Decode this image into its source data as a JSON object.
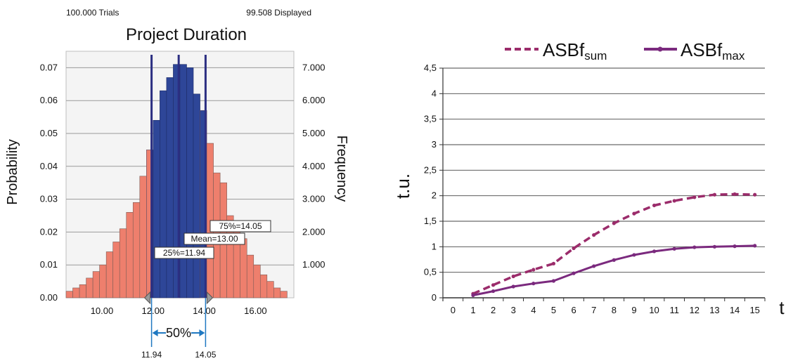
{
  "chart_data": [
    {
      "type": "bar",
      "title": "Project Duration",
      "header_left": "100.000 Trials",
      "header_right": "99.508 Displayed",
      "xlabel": "",
      "ylabel_left": "Probability",
      "ylabel_right": "Frequency",
      "xlim": [
        8.6,
        17.5
      ],
      "ylim_left": [
        0,
        0.075
      ],
      "ylim_right": [
        0,
        7500
      ],
      "x_ticks": [
        10.0,
        12.0,
        14.0,
        16.0
      ],
      "x_tick_labels": [
        "10.00",
        "12.00",
        "14.00",
        "16.00"
      ],
      "y_left_ticks": [
        0,
        0.01,
        0.02,
        0.03,
        0.04,
        0.05,
        0.06,
        0.07
      ],
      "y_left_tick_labels": [
        "0.00",
        "0.01",
        "0.02",
        "0.03",
        "0.04",
        "0.05",
        "0.06",
        "0.07"
      ],
      "y_right_ticks": [
        1000,
        2000,
        3000,
        4000,
        5000,
        6000,
        7000
      ],
      "y_right_tick_labels": [
        "1.000",
        "2.000",
        "3.000",
        "4.000",
        "5.000",
        "6.000",
        "7.000"
      ],
      "grid": true,
      "bin_start": 8.6,
      "bin_width": 0.2617,
      "probabilities": [
        0.002,
        0.003,
        0.004,
        0.006,
        0.008,
        0.01,
        0.014,
        0.017,
        0.021,
        0.026,
        0.029,
        0.037,
        0.045,
        0.054,
        0.063,
        0.067,
        0.071,
        0.071,
        0.07,
        0.062,
        0.057,
        0.047,
        0.038,
        0.035,
        0.025,
        0.021,
        0.018,
        0.013,
        0.01,
        0.007,
        0.005,
        0.003,
        0.002
      ],
      "colors": {
        "outside": "#ee7f6d",
        "inside": "#2e4698",
        "line": "#2c2f82",
        "bracket": "#1f78c1"
      },
      "markers": {
        "p25": 11.94,
        "mean": 13.0,
        "p75": 14.05
      },
      "annotations": {
        "p25": "25%=11.94",
        "mean": "Mean=13.00",
        "p75": "75%=14.05"
      },
      "range_label": "50%",
      "range_low_label": "11.94",
      "range_high_label": "14.05"
    },
    {
      "type": "line",
      "title": "",
      "xlabel": "t",
      "ylabel": "t.u.",
      "x": [
        0,
        1,
        2,
        3,
        4,
        5,
        6,
        7,
        8,
        9,
        10,
        11,
        12,
        13,
        14,
        15
      ],
      "x_tick_labels": [
        "0",
        "1",
        "2",
        "3",
        "4",
        "5",
        "6",
        "7",
        "8",
        "9",
        "10",
        "11",
        "12",
        "13",
        "14",
        "15"
      ],
      "ylim": [
        0,
        4.5
      ],
      "y_ticks": [
        0,
        0.5,
        1,
        1.5,
        2,
        2.5,
        3,
        3.5,
        4,
        4.5
      ],
      "y_tick_labels": [
        "0",
        "0,5",
        "1",
        "1,5",
        "2",
        "2,5",
        "3",
        "3,5",
        "4",
        "4,5"
      ],
      "grid": true,
      "legend_position": "top",
      "series": [
        {
          "name": "ASBf",
          "subscript": "sum",
          "style": "dashed",
          "color": "#9b2c6b",
          "x": [
            1,
            2,
            3,
            4,
            5,
            6,
            7,
            8,
            9,
            10,
            11,
            12,
            13,
            14,
            15
          ],
          "values": [
            0.08,
            0.25,
            0.42,
            0.55,
            0.67,
            0.97,
            1.23,
            1.46,
            1.65,
            1.81,
            1.9,
            1.97,
            2.02,
            2.03,
            2.02
          ]
        },
        {
          "name": "ASBf",
          "subscript": "max",
          "style": "solid",
          "color": "#7b2a7e",
          "x": [
            1,
            2,
            3,
            4,
            5,
            6,
            7,
            8,
            9,
            10,
            11,
            12,
            13,
            14,
            15
          ],
          "values": [
            0.05,
            0.13,
            0.22,
            0.28,
            0.33,
            0.48,
            0.62,
            0.74,
            0.84,
            0.91,
            0.96,
            0.99,
            1.0,
            1.01,
            1.02
          ]
        }
      ]
    }
  ]
}
